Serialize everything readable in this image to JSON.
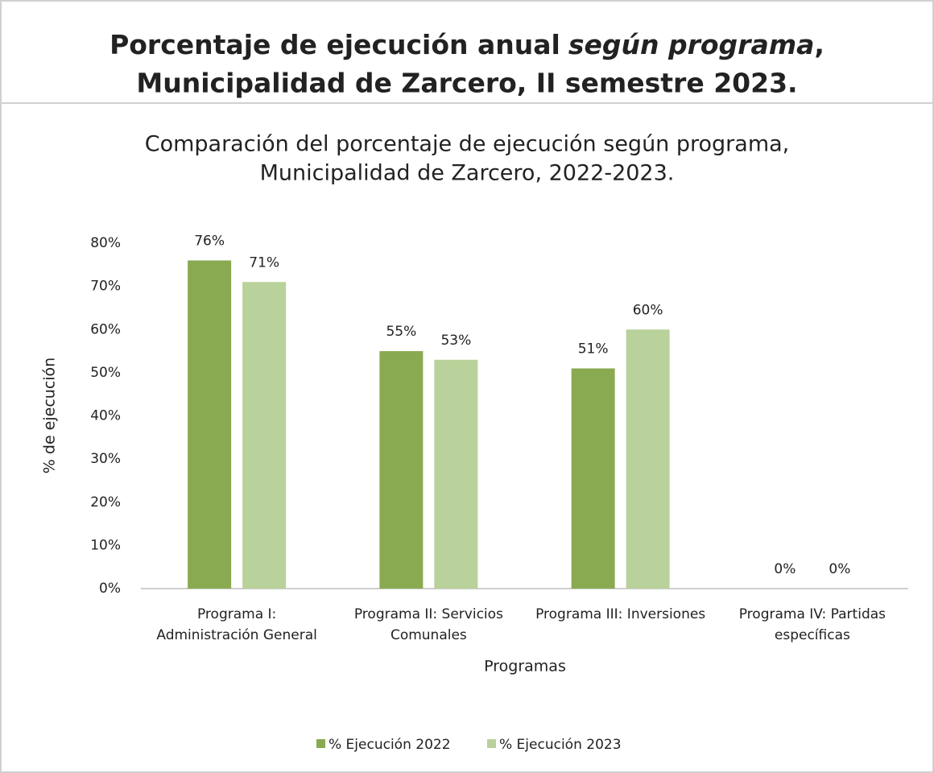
{
  "header": {
    "title_line1": [
      "Porcentaje de ejecución anual",
      "según programa",
      ","
    ],
    "title_line2": "Municipalidad de Zarcero, II semestre 2023."
  },
  "chart_data": {
    "type": "bar",
    "title": [
      "Comparación del porcentaje de ejecución según programa,",
      "Municipalidad de Zarcero, 2022-2023."
    ],
    "x_label": "Programas",
    "y_label": "% de ejecución",
    "categories": [
      [
        "Programa I:",
        "Administración General"
      ],
      [
        "Programa II: Servicios",
        "Comunales"
      ],
      [
        "Programa III: Inversiones"
      ],
      [
        "Programa IV: Partidas",
        "específicas"
      ]
    ],
    "series": [
      {
        "name": "% Ejecución 2022",
        "color": "#8aaa52",
        "values": [
          76,
          55,
          51,
          0
        ],
        "value_labels": [
          "76%",
          "55%",
          "51%",
          "0%"
        ]
      },
      {
        "name": "% Ejecución 2023",
        "color": "#b9d19a",
        "values": [
          71,
          53,
          60,
          0
        ],
        "value_labels": [
          "71%",
          "53%",
          "60%",
          "0%"
        ]
      }
    ],
    "ylim": [
      0,
      80
    ],
    "yticks": [
      {
        "value": 0,
        "label": "0%"
      },
      {
        "value": 10,
        "label": "10%"
      },
      {
        "value": 20,
        "label": "20%"
      },
      {
        "value": 30,
        "label": "30%"
      },
      {
        "value": 40,
        "label": "40%"
      },
      {
        "value": 50,
        "label": "50%"
      },
      {
        "value": 60,
        "label": "60%"
      },
      {
        "value": 70,
        "label": "70%"
      },
      {
        "value": 80,
        "label": "80%"
      }
    ],
    "grid": false,
    "legend": "bottom"
  }
}
